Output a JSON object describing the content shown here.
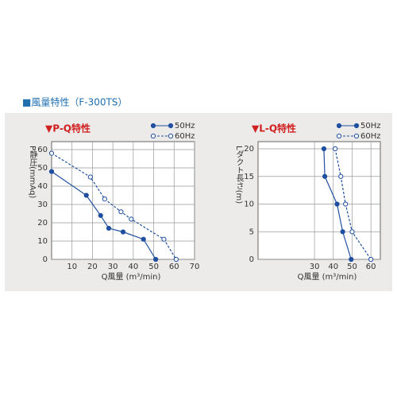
{
  "header": "■風量特性（F-300TS）",
  "chart_data": [
    {
      "type": "line",
      "title": "▼P-Q特性",
      "ylabel": "P静圧(mmAq)",
      "xlabel": "Q風量 (m³/min)",
      "xlim": [
        0,
        70
      ],
      "ylim": [
        0,
        60
      ],
      "xticks": [
        10,
        20,
        30,
        40,
        50,
        60,
        70
      ],
      "yticks": [
        0,
        10,
        20,
        30,
        40,
        50,
        60
      ],
      "grid": true,
      "legend": "top-right",
      "series": [
        {
          "name": "50Hz",
          "color": "#1f4fa0",
          "dashed": false,
          "x": [
            0,
            17,
            24,
            28,
            35,
            45,
            51
          ],
          "values": [
            48,
            35,
            24,
            17,
            15,
            11,
            0
          ]
        },
        {
          "name": "60Hz",
          "color": "#1f4fa0",
          "dashed": true,
          "x": [
            0,
            19,
            26,
            34,
            39,
            55,
            61
          ],
          "values": [
            58,
            45,
            33,
            26,
            22,
            11,
            0
          ]
        }
      ]
    },
    {
      "type": "line",
      "title": "▼L-Q特性",
      "ylabel": "Lダクト長さ(m)",
      "xlabel": "Q風量 (m³/min)",
      "xlim": [
        0,
        65
      ],
      "ylim": [
        0,
        20
      ],
      "xticks": [
        30,
        40,
        50,
        60
      ],
      "yticks": [
        0,
        5,
        10,
        15,
        20
      ],
      "grid": true,
      "legend": "top-right",
      "series": [
        {
          "name": "50Hz",
          "color": "#1f4fa0",
          "dashed": false,
          "x": [
            35,
            35.5,
            42,
            45,
            49.5
          ],
          "values": [
            20,
            15,
            10,
            5,
            0
          ]
        },
        {
          "name": "60Hz",
          "color": "#1f4fa0",
          "dashed": true,
          "x": [
            41,
            44,
            46.5,
            50,
            60
          ],
          "values": [
            20,
            15,
            10,
            5,
            0
          ]
        }
      ]
    }
  ]
}
